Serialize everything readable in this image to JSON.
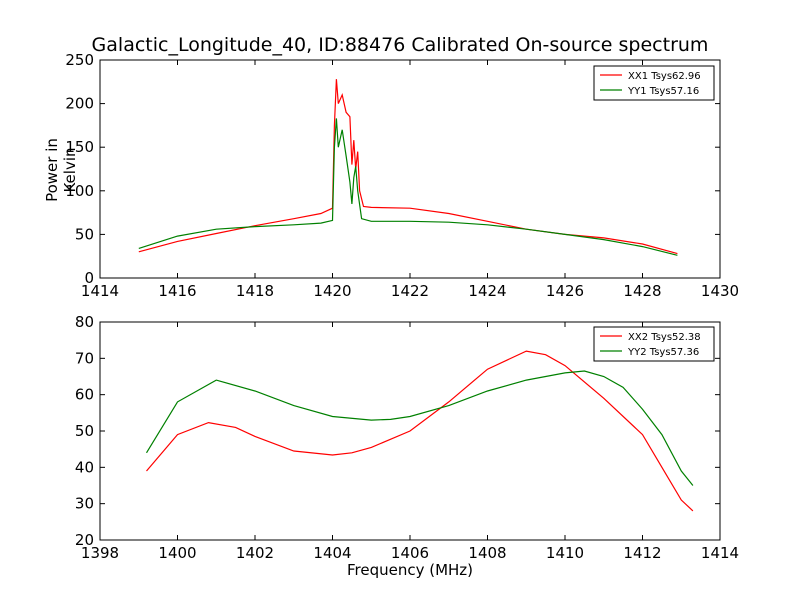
{
  "figure": {
    "title": "Galactic_Longitude_40, ID:88476 Calibrated On-source spectrum",
    "xlabel": "Frequency (MHz)",
    "ylabel_top": "Power in Kelvin"
  },
  "chart_data": [
    {
      "type": "line",
      "title": "Galactic_Longitude_40, ID:88476 Calibrated On-source spectrum",
      "xlabel": "",
      "ylabel": "Power in Kelvin",
      "xlim": [
        1414,
        1430
      ],
      "ylim": [
        0,
        250
      ],
      "xticks": [
        1414,
        1416,
        1418,
        1420,
        1422,
        1424,
        1426,
        1428,
        1430
      ],
      "yticks": [
        0,
        50,
        100,
        150,
        200,
        250
      ],
      "grid": false,
      "legend_position": "top-right",
      "series": [
        {
          "name": "XX1 Tsys62.96",
          "color": "#ff0000",
          "points": [
            [
              1415.0,
              30
            ],
            [
              1416.0,
              42
            ],
            [
              1417.0,
              51
            ],
            [
              1418.0,
              60
            ],
            [
              1419.0,
              68
            ],
            [
              1419.7,
              74
            ],
            [
              1420.0,
              80
            ],
            [
              1420.05,
              175
            ],
            [
              1420.1,
              228
            ],
            [
              1420.15,
              200
            ],
            [
              1420.25,
              210
            ],
            [
              1420.35,
              190
            ],
            [
              1420.45,
              185
            ],
            [
              1420.5,
              130
            ],
            [
              1420.55,
              158
            ],
            [
              1420.6,
              125
            ],
            [
              1420.65,
              145
            ],
            [
              1420.7,
              100
            ],
            [
              1420.8,
              82
            ],
            [
              1421.0,
              81
            ],
            [
              1422.0,
              80
            ],
            [
              1423.0,
              74
            ],
            [
              1424.0,
              65
            ],
            [
              1425.0,
              56
            ],
            [
              1426.0,
              50
            ],
            [
              1427.0,
              46
            ],
            [
              1428.0,
              39
            ],
            [
              1428.9,
              28
            ]
          ]
        },
        {
          "name": "YY1 Tsys57.16",
          "color": "#008000",
          "points": [
            [
              1415.0,
              34
            ],
            [
              1416.0,
              48
            ],
            [
              1417.0,
              56
            ],
            [
              1418.0,
              59
            ],
            [
              1419.0,
              61
            ],
            [
              1419.7,
              63
            ],
            [
              1420.0,
              66
            ],
            [
              1420.05,
              150
            ],
            [
              1420.1,
              183
            ],
            [
              1420.15,
              150
            ],
            [
              1420.25,
              170
            ],
            [
              1420.35,
              140
            ],
            [
              1420.45,
              110
            ],
            [
              1420.5,
              85
            ],
            [
              1420.55,
              115
            ],
            [
              1420.6,
              128
            ],
            [
              1420.65,
              100
            ],
            [
              1420.75,
              68
            ],
            [
              1421.0,
              65
            ],
            [
              1422.0,
              65
            ],
            [
              1423.0,
              64
            ],
            [
              1424.0,
              61
            ],
            [
              1425.0,
              56
            ],
            [
              1426.0,
              50
            ],
            [
              1427.0,
              44
            ],
            [
              1428.0,
              36
            ],
            [
              1428.9,
              26
            ]
          ]
        }
      ]
    },
    {
      "type": "line",
      "xlabel": "Frequency (MHz)",
      "ylabel": "",
      "xlim": [
        1398,
        1414
      ],
      "ylim": [
        20,
        80
      ],
      "xticks": [
        1398,
        1400,
        1402,
        1404,
        1406,
        1408,
        1410,
        1412,
        1414
      ],
      "yticks": [
        20,
        30,
        40,
        50,
        60,
        70,
        80
      ],
      "grid": false,
      "legend_position": "top-right",
      "series": [
        {
          "name": "XX2 Tsys52.38",
          "color": "#ff0000",
          "points": [
            [
              1399.2,
              39
            ],
            [
              1400.0,
              49
            ],
            [
              1400.8,
              52.3
            ],
            [
              1401.5,
              51
            ],
            [
              1402.0,
              48.5
            ],
            [
              1403.0,
              44.5
            ],
            [
              1404.0,
              43.4
            ],
            [
              1404.5,
              44
            ],
            [
              1405.0,
              45.5
            ],
            [
              1406.0,
              50
            ],
            [
              1407.0,
              58
            ],
            [
              1408.0,
              67
            ],
            [
              1409.0,
              72
            ],
            [
              1409.5,
              71
            ],
            [
              1410.0,
              68
            ],
            [
              1411.0,
              59
            ],
            [
              1412.0,
              49
            ],
            [
              1412.5,
              40
            ],
            [
              1413.0,
              31
            ],
            [
              1413.3,
              28
            ]
          ]
        },
        {
          "name": "YY2 Tsys57.36",
          "color": "#008000",
          "points": [
            [
              1399.2,
              44
            ],
            [
              1400.0,
              58
            ],
            [
              1401.0,
              64
            ],
            [
              1402.0,
              61
            ],
            [
              1403.0,
              57
            ],
            [
              1404.0,
              54
            ],
            [
              1405.0,
              53
            ],
            [
              1405.5,
              53.2
            ],
            [
              1406.0,
              54
            ],
            [
              1407.0,
              57
            ],
            [
              1408.0,
              61
            ],
            [
              1409.0,
              64
            ],
            [
              1410.0,
              66
            ],
            [
              1410.5,
              66.5
            ],
            [
              1411.0,
              65
            ],
            [
              1411.5,
              62
            ],
            [
              1412.0,
              56
            ],
            [
              1412.5,
              49
            ],
            [
              1413.0,
              39
            ],
            [
              1413.3,
              35
            ]
          ]
        }
      ]
    }
  ]
}
